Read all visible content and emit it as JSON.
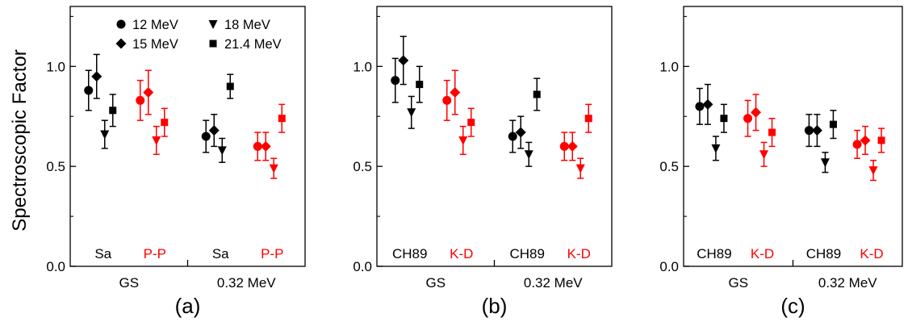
{
  "chart_data": {
    "type": "scatter",
    "ylabel": "Spectroscopic Factor",
    "ylim": [
      0.0,
      1.3
    ],
    "yticks": [
      "0.0",
      "0.5",
      "1.0"
    ],
    "colors": {
      "black": "#000000",
      "red": "#ff0000"
    },
    "legend": {
      "placement": "top-left of panel (a)",
      "entries": [
        {
          "label": "12 MeV",
          "marker": "circle"
        },
        {
          "label": "15 MeV",
          "marker": "diamond"
        },
        {
          "label": "18 MeV",
          "marker": "triangle-down"
        },
        {
          "label": "21.4 MeV",
          "marker": "square"
        }
      ]
    },
    "panels": [
      {
        "panel_label": "(a)",
        "groups": [
          {
            "label": "GS",
            "methods": [
              {
                "name": "Sa",
                "color": "black",
                "points": [
                  {
                    "energy": "12 MeV",
                    "y": 0.88,
                    "err": 0.1
                  },
                  {
                    "energy": "15 MeV",
                    "y": 0.95,
                    "err": 0.11
                  },
                  {
                    "energy": "18 MeV",
                    "y": 0.66,
                    "err": 0.07
                  },
                  {
                    "energy": "21.4 MeV",
                    "y": 0.78,
                    "err": 0.08
                  }
                ]
              },
              {
                "name": "P-P",
                "color": "red",
                "points": [
                  {
                    "energy": "12 MeV",
                    "y": 0.83,
                    "err": 0.1
                  },
                  {
                    "energy": "15 MeV",
                    "y": 0.87,
                    "err": 0.11
                  },
                  {
                    "energy": "18 MeV",
                    "y": 0.63,
                    "err": 0.07
                  },
                  {
                    "energy": "21.4 MeV",
                    "y": 0.72,
                    "err": 0.07
                  }
                ]
              }
            ]
          },
          {
            "label": "0.32 MeV",
            "methods": [
              {
                "name": "Sa",
                "color": "black",
                "points": [
                  {
                    "energy": "12 MeV",
                    "y": 0.65,
                    "err": 0.08
                  },
                  {
                    "energy": "15 MeV",
                    "y": 0.68,
                    "err": 0.08
                  },
                  {
                    "energy": "18 MeV",
                    "y": 0.58,
                    "err": 0.06
                  },
                  {
                    "energy": "21.4 MeV",
                    "y": 0.9,
                    "err": 0.06
                  }
                ]
              },
              {
                "name": "P-P",
                "color": "red",
                "points": [
                  {
                    "energy": "12 MeV",
                    "y": 0.6,
                    "err": 0.07
                  },
                  {
                    "energy": "15 MeV",
                    "y": 0.6,
                    "err": 0.07
                  },
                  {
                    "energy": "18 MeV",
                    "y": 0.49,
                    "err": 0.05
                  },
                  {
                    "energy": "21.4 MeV",
                    "y": 0.74,
                    "err": 0.07
                  }
                ]
              }
            ]
          }
        ]
      },
      {
        "panel_label": "(b)",
        "groups": [
          {
            "label": "GS",
            "methods": [
              {
                "name": "CH89",
                "color": "black",
                "points": [
                  {
                    "energy": "12 MeV",
                    "y": 0.93,
                    "err": 0.11
                  },
                  {
                    "energy": "15 MeV",
                    "y": 1.03,
                    "err": 0.12
                  },
                  {
                    "energy": "18 MeV",
                    "y": 0.77,
                    "err": 0.08
                  },
                  {
                    "energy": "21.4 MeV",
                    "y": 0.91,
                    "err": 0.09
                  }
                ]
              },
              {
                "name": "K-D",
                "color": "red",
                "points": [
                  {
                    "energy": "12 MeV",
                    "y": 0.83,
                    "err": 0.1
                  },
                  {
                    "energy": "15 MeV",
                    "y": 0.87,
                    "err": 0.11
                  },
                  {
                    "energy": "18 MeV",
                    "y": 0.63,
                    "err": 0.07
                  },
                  {
                    "energy": "21.4 MeV",
                    "y": 0.72,
                    "err": 0.07
                  }
                ]
              }
            ]
          },
          {
            "label": "0.32 MeV",
            "methods": [
              {
                "name": "CH89",
                "color": "black",
                "points": [
                  {
                    "energy": "12 MeV",
                    "y": 0.65,
                    "err": 0.08
                  },
                  {
                    "energy": "15 MeV",
                    "y": 0.67,
                    "err": 0.08
                  },
                  {
                    "energy": "18 MeV",
                    "y": 0.56,
                    "err": 0.06
                  },
                  {
                    "energy": "21.4 MeV",
                    "y": 0.86,
                    "err": 0.08
                  }
                ]
              },
              {
                "name": "K-D",
                "color": "red",
                "points": [
                  {
                    "energy": "12 MeV",
                    "y": 0.6,
                    "err": 0.07
                  },
                  {
                    "energy": "15 MeV",
                    "y": 0.6,
                    "err": 0.07
                  },
                  {
                    "energy": "18 MeV",
                    "y": 0.49,
                    "err": 0.05
                  },
                  {
                    "energy": "21.4 MeV",
                    "y": 0.74,
                    "err": 0.07
                  }
                ]
              }
            ]
          }
        ]
      },
      {
        "panel_label": "(c)",
        "groups": [
          {
            "label": "GS",
            "methods": [
              {
                "name": "CH89",
                "color": "black",
                "points": [
                  {
                    "energy": "12 MeV",
                    "y": 0.8,
                    "err": 0.09
                  },
                  {
                    "energy": "15 MeV",
                    "y": 0.81,
                    "err": 0.1
                  },
                  {
                    "energy": "18 MeV",
                    "y": 0.59,
                    "err": 0.06
                  },
                  {
                    "energy": "21.4 MeV",
                    "y": 0.74,
                    "err": 0.07
                  }
                ]
              },
              {
                "name": "K-D",
                "color": "red",
                "points": [
                  {
                    "energy": "12 MeV",
                    "y": 0.74,
                    "err": 0.09
                  },
                  {
                    "energy": "15 MeV",
                    "y": 0.77,
                    "err": 0.09
                  },
                  {
                    "energy": "18 MeV",
                    "y": 0.56,
                    "err": 0.06
                  },
                  {
                    "energy": "21.4 MeV",
                    "y": 0.67,
                    "err": 0.07
                  }
                ]
              }
            ]
          },
          {
            "label": "0.32 MeV",
            "methods": [
              {
                "name": "CH89",
                "color": "black",
                "points": [
                  {
                    "energy": "12 MeV",
                    "y": 0.68,
                    "err": 0.08
                  },
                  {
                    "energy": "15 MeV",
                    "y": 0.68,
                    "err": 0.08
                  },
                  {
                    "energy": "18 MeV",
                    "y": 0.52,
                    "err": 0.05
                  },
                  {
                    "energy": "21.4 MeV",
                    "y": 0.71,
                    "err": 0.07
                  }
                ]
              },
              {
                "name": "K-D",
                "color": "red",
                "points": [
                  {
                    "energy": "12 MeV",
                    "y": 0.61,
                    "err": 0.07
                  },
                  {
                    "energy": "15 MeV",
                    "y": 0.63,
                    "err": 0.07
                  },
                  {
                    "energy": "18 MeV",
                    "y": 0.48,
                    "err": 0.05
                  },
                  {
                    "energy": "21.4 MeV",
                    "y": 0.63,
                    "err": 0.06
                  }
                ]
              }
            ]
          }
        ]
      }
    ]
  }
}
